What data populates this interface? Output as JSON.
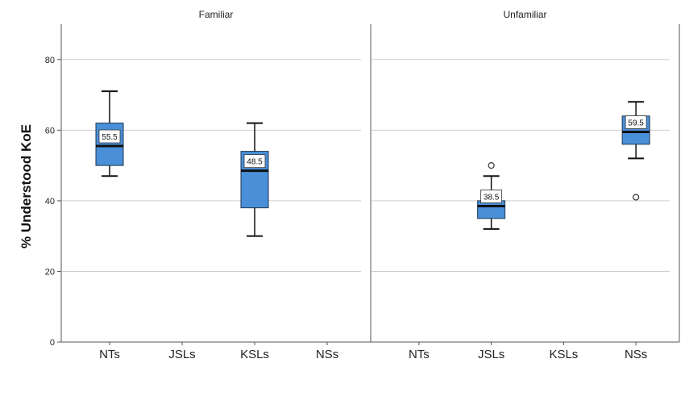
{
  "chart_data": {
    "type": "boxplot",
    "ylabel": "% Understood KoE",
    "ylim": [
      0,
      90
    ],
    "yticks": [
      0,
      20,
      40,
      60,
      80
    ],
    "grid": true,
    "categories": [
      "NTs",
      "JSLs",
      "KSLs",
      "NSs"
    ],
    "panels": [
      {
        "title": "Familiar",
        "boxes": [
          {
            "category": "NTs",
            "whisker_low": 47,
            "q1": 50,
            "median": 55.5,
            "q3": 62,
            "whisker_high": 71,
            "label": "55.5",
            "outliers": []
          },
          {
            "category": "KSLs",
            "whisker_low": 30,
            "q1": 38,
            "median": 48.5,
            "q3": 54,
            "whisker_high": 62,
            "label": "48.5",
            "outliers": []
          }
        ]
      },
      {
        "title": "Unfamiliar",
        "boxes": [
          {
            "category": "JSLs",
            "whisker_low": 32,
            "q1": 35,
            "median": 38.5,
            "q3": 40,
            "whisker_high": 47,
            "label": "38.5",
            "outliers": [
              50
            ]
          },
          {
            "category": "NSs",
            "whisker_low": 52,
            "q1": 56,
            "median": 59.5,
            "q3": 64,
            "whisker_high": 68,
            "label": "59.5",
            "outliers": [
              41
            ]
          }
        ]
      }
    ],
    "colors": {
      "box_fill": "#4a90d9",
      "box_stroke": "#1f3550",
      "grid": "#cfcfcf",
      "axis": "#555555"
    }
  }
}
